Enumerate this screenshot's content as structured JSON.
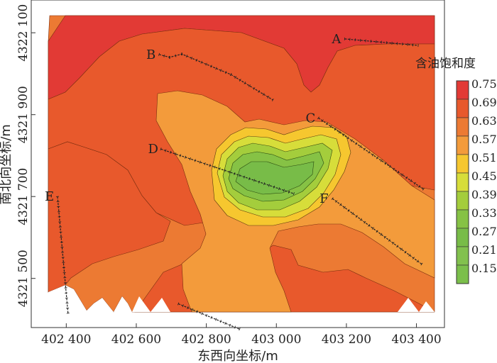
{
  "chart_data": {
    "type": "contour",
    "xlabel": "东西向坐标/m",
    "ylabel": "南北向坐标/m",
    "xlim": [
      402300,
      403480
    ],
    "ylim": [
      4321380,
      4322180
    ],
    "x_ticks": [
      {
        "value": 402400,
        "label": "402 400"
      },
      {
        "value": 402600,
        "label": "402 600"
      },
      {
        "value": 402800,
        "label": "402 800"
      },
      {
        "value": 403000,
        "label": "403 000"
      },
      {
        "value": 403200,
        "label": "403 200"
      },
      {
        "value": 403400,
        "label": "403 400"
      }
    ],
    "y_ticks": [
      {
        "value": 4321500,
        "label": "4321 500"
      },
      {
        "value": 4321700,
        "label": "4321 700"
      },
      {
        "value": 4321900,
        "label": "4321 900"
      },
      {
        "value": 4322100,
        "label": "4322 100"
      }
    ],
    "legend": {
      "title": "含油饱和度",
      "levels": [
        "0.75",
        "0.69",
        "0.63",
        "0.57",
        "0.51",
        "0.45",
        "0.39",
        "0.33",
        "0.27",
        "0.21",
        "0.15"
      ],
      "colors": [
        "#e23a35",
        "#e8592c",
        "#ec7a33",
        "#f39b3b",
        "#f6c72f",
        "#d7dd3a",
        "#a4cd3c",
        "#86c245",
        "#78bc48",
        "#82c14e",
        "#7bbf4b"
      ]
    },
    "wells": [
      {
        "name": "A",
        "x": [
          403195,
          403405
        ],
        "y": [
          4322085,
          4322069
        ]
      },
      {
        "name": "B",
        "x": [
          402665,
          402695,
          402730,
          402870,
          402990
        ],
        "y": [
          4322047,
          4322040,
          4322048,
          4321998,
          4321936
        ]
      },
      {
        "name": "C",
        "x": [
          403120,
          403420
        ],
        "y": [
          4321892,
          4321718
        ]
      },
      {
        "name": "D",
        "x": [
          402670,
          402810,
          403050
        ],
        "y": [
          4321816,
          4321776,
          4321707
        ]
      },
      {
        "name": "E",
        "x": [
          402375,
          402405
        ],
        "y": [
          4321700,
          4321415
        ]
      },
      {
        "name": "F",
        "x": [
          403160,
          403415
        ],
        "y": [
          4321695,
          4321535
        ]
      },
      {
        "name": "",
        "x": [
          402720,
          402895
        ],
        "y": [
          4321438,
          4321376
        ]
      }
    ]
  }
}
